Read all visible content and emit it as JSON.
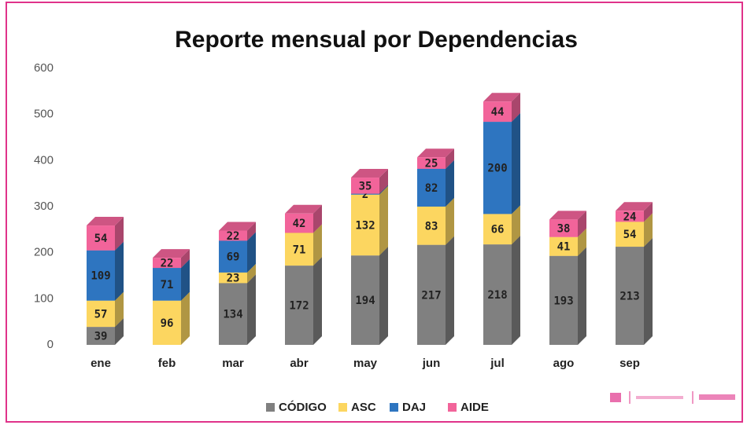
{
  "chart_data": {
    "type": "bar",
    "stacked": true,
    "title": "Reporte mensual por Dependencias",
    "categories": [
      "ene",
      "feb",
      "mar",
      "abr",
      "may",
      "jun",
      "jul",
      "ago",
      "sep"
    ],
    "series": [
      {
        "name": "CÓDIGO",
        "color": "#808080",
        "values": [
          39,
          null,
          134,
          172,
          194,
          217,
          218,
          193,
          213
        ]
      },
      {
        "name": "ASC",
        "color": "#fcd660",
        "values": [
          57,
          96,
          23,
          71,
          132,
          83,
          66,
          41,
          54
        ]
      },
      {
        "name": "DAJ",
        "color": "#2e75c0",
        "values": [
          109,
          71,
          69,
          null,
          2,
          82,
          200,
          null,
          null
        ]
      },
      {
        "name": "AIDE",
        "color": "#f2649a",
        "values": [
          54,
          22,
          22,
          42,
          35,
          25,
          44,
          38,
          24
        ]
      }
    ],
    "ylim": [
      0,
      600
    ],
    "yticks": [
      0,
      100,
      200,
      300,
      400,
      500,
      600
    ],
    "grid": false,
    "legend": "bottom"
  }
}
